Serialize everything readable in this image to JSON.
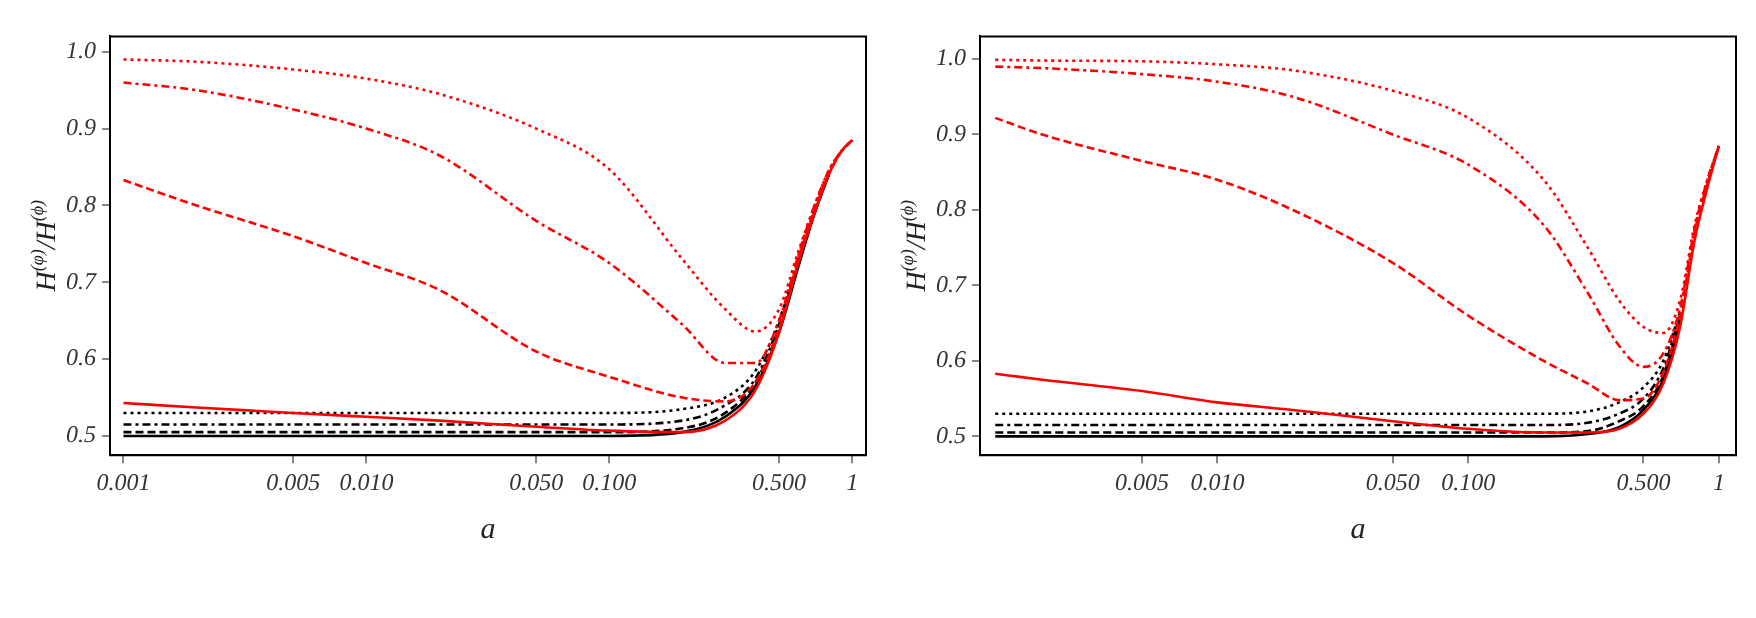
{
  "chart_data": [
    {
      "type": "line",
      "xlabel": "a",
      "ylabel": "H$^{(φ)}$/H$^{(ϕ)}$",
      "log": "x",
      "grid": false,
      "legend": false,
      "xlim": [
        0.00088,
        1.14
      ],
      "ylim": [
        0.475,
        1.02
      ],
      "xticks": [
        0.001,
        0.005,
        {
          "value": 0.01,
          "label": "0.010"
        },
        {
          "value": 0.05,
          "label": "0.050"
        },
        {
          "value": 0.1,
          "label": "0.100"
        },
        {
          "value": 0.5,
          "label": "0.500"
        },
        1
      ],
      "yticks": [
        0.5,
        0.6,
        0.7,
        0.8,
        0.9,
        {
          "value": 1,
          "label": "1.0"
        }
      ],
      "x": [
        0.001,
        0.002,
        0.005,
        0.01,
        0.02,
        0.05,
        0.1,
        0.2,
        0.3,
        0.4,
        0.5,
        0.6,
        0.7,
        0.8,
        0.9,
        1
      ],
      "series": [
        {
          "color": "#ff0000",
          "line_style": "dotted",
          "values": [
            0.99,
            0.987,
            0.977,
            0.965,
            0.945,
            0.9,
            0.847,
            0.73,
            0.665,
            0.636,
            0.665,
            0.74,
            0.8,
            0.845,
            0.87,
            0.885
          ]
        },
        {
          "color": "#ff0000",
          "line_style": "dashdot",
          "values": [
            0.96,
            0.95,
            0.925,
            0.9,
            0.865,
            0.78,
            0.725,
            0.645,
            0.595,
            0.595,
            0.65,
            0.735,
            0.8,
            0.845,
            0.87,
            0.885
          ]
        },
        {
          "color": "#ff0000",
          "line_style": "dashed",
          "values": [
            0.833,
            0.8,
            0.76,
            0.725,
            0.69,
            0.61,
            0.577,
            0.55,
            0.545,
            0.57,
            0.64,
            0.73,
            0.795,
            0.84,
            0.87,
            0.885
          ]
        },
        {
          "color": "#ff0000",
          "line_style": "solid",
          "values": [
            0.543,
            0.537,
            0.53,
            0.525,
            0.52,
            0.512,
            0.507,
            0.505,
            0.52,
            0.56,
            0.635,
            0.725,
            0.79,
            0.84,
            0.87,
            0.885
          ]
        },
        {
          "color": "#000000",
          "line_style": "dotted",
          "values": [
            0.53,
            0.53,
            0.53,
            0.53,
            0.53,
            0.53,
            0.53,
            0.535,
            0.55,
            0.585,
            0.65,
            0.73,
            0.795,
            0.84,
            null,
            null
          ]
        },
        {
          "color": "#000000",
          "line_style": "dashdot",
          "values": [
            0.515,
            0.515,
            0.515,
            0.515,
            0.515,
            0.515,
            0.515,
            0.52,
            0.54,
            0.575,
            0.645,
            0.725,
            0.79,
            0.84,
            null,
            null
          ]
        },
        {
          "color": "#000000",
          "line_style": "dashed",
          "values": [
            0.505,
            0.505,
            0.505,
            0.505,
            0.505,
            0.505,
            0.505,
            0.51,
            0.53,
            0.57,
            0.64,
            0.725,
            0.79,
            0.84,
            null,
            null
          ]
        },
        {
          "color": "#000000",
          "line_style": "solid",
          "values": [
            0.5,
            0.5,
            0.5,
            0.5,
            0.5,
            0.5,
            0.5,
            0.505,
            0.525,
            0.565,
            0.635,
            0.72,
            0.79,
            0.84,
            null,
            null
          ]
        }
      ]
    },
    {
      "type": "line",
      "xlabel": "a",
      "ylabel": "H$^{(φ)}$/H$^{(ϕ)}$",
      "log": "x",
      "grid": false,
      "legend": false,
      "xlim": [
        0.00113,
        1.17
      ],
      "ylim": [
        0.475,
        1.03
      ],
      "xticks": [
        0.005,
        {
          "value": 0.01,
          "label": "0.010"
        },
        {
          "value": 0.05,
          "label": "0.050"
        },
        {
          "value": 0.1,
          "label": "0.100"
        },
        {
          "value": 0.5,
          "label": "0.500"
        },
        1
      ],
      "yticks": [
        0.5,
        0.6,
        0.7,
        0.8,
        0.9,
        {
          "value": 1,
          "label": "1.0"
        }
      ],
      "x": [
        0.0013,
        0.002,
        0.005,
        0.01,
        0.02,
        0.05,
        0.1,
        0.2,
        0.3,
        0.4,
        0.5,
        0.6,
        0.7,
        0.8,
        0.9,
        1
      ],
      "series": [
        {
          "color": "#ff0000",
          "line_style": "dotted",
          "values": [
            0.999,
            0.998,
            0.997,
            0.993,
            0.985,
            0.958,
            0.922,
            0.84,
            0.75,
            0.68,
            0.645,
            0.637,
            0.68,
            0.78,
            0.84,
            0.885
          ]
        },
        {
          "color": "#ff0000",
          "line_style": "dashdot",
          "values": [
            0.99,
            0.988,
            0.98,
            0.97,
            0.95,
            0.9,
            0.86,
            0.78,
            0.69,
            0.62,
            0.592,
            0.61,
            0.67,
            0.775,
            0.84,
            0.885
          ]
        },
        {
          "color": "#ff0000",
          "line_style": "dashed",
          "values": [
            0.922,
            0.9,
            0.865,
            0.84,
            0.8,
            0.73,
            0.66,
            0.6,
            0.57,
            0.548,
            0.55,
            0.585,
            0.66,
            0.77,
            0.835,
            0.885
          ]
        },
        {
          "color": "#ff0000",
          "line_style": "solid",
          "values": [
            0.583,
            0.575,
            0.56,
            0.545,
            0.535,
            0.52,
            0.51,
            0.505,
            0.505,
            0.51,
            0.53,
            0.57,
            0.645,
            0.76,
            0.83,
            0.885
          ]
        },
        {
          "color": "#000000",
          "line_style": "dotted",
          "values": [
            0.53,
            0.53,
            0.53,
            0.53,
            0.53,
            0.53,
            0.53,
            0.53,
            0.533,
            0.545,
            0.565,
            0.6,
            0.665,
            null,
            null,
            null
          ]
        },
        {
          "color": "#000000",
          "line_style": "dashdot",
          "values": [
            0.515,
            0.515,
            0.515,
            0.515,
            0.515,
            0.515,
            0.515,
            0.515,
            0.518,
            0.53,
            0.55,
            0.59,
            0.66,
            null,
            null,
            null
          ]
        },
        {
          "color": "#000000",
          "line_style": "dashed",
          "values": [
            0.505,
            0.505,
            0.505,
            0.505,
            0.505,
            0.505,
            0.505,
            0.505,
            0.507,
            0.52,
            0.54,
            0.58,
            0.655,
            null,
            null,
            null
          ]
        },
        {
          "color": "#000000",
          "line_style": "solid",
          "values": [
            0.5,
            0.5,
            0.5,
            0.5,
            0.5,
            0.5,
            0.5,
            0.5,
            0.503,
            0.512,
            0.535,
            0.575,
            0.65,
            null,
            null,
            null
          ]
        }
      ]
    }
  ]
}
